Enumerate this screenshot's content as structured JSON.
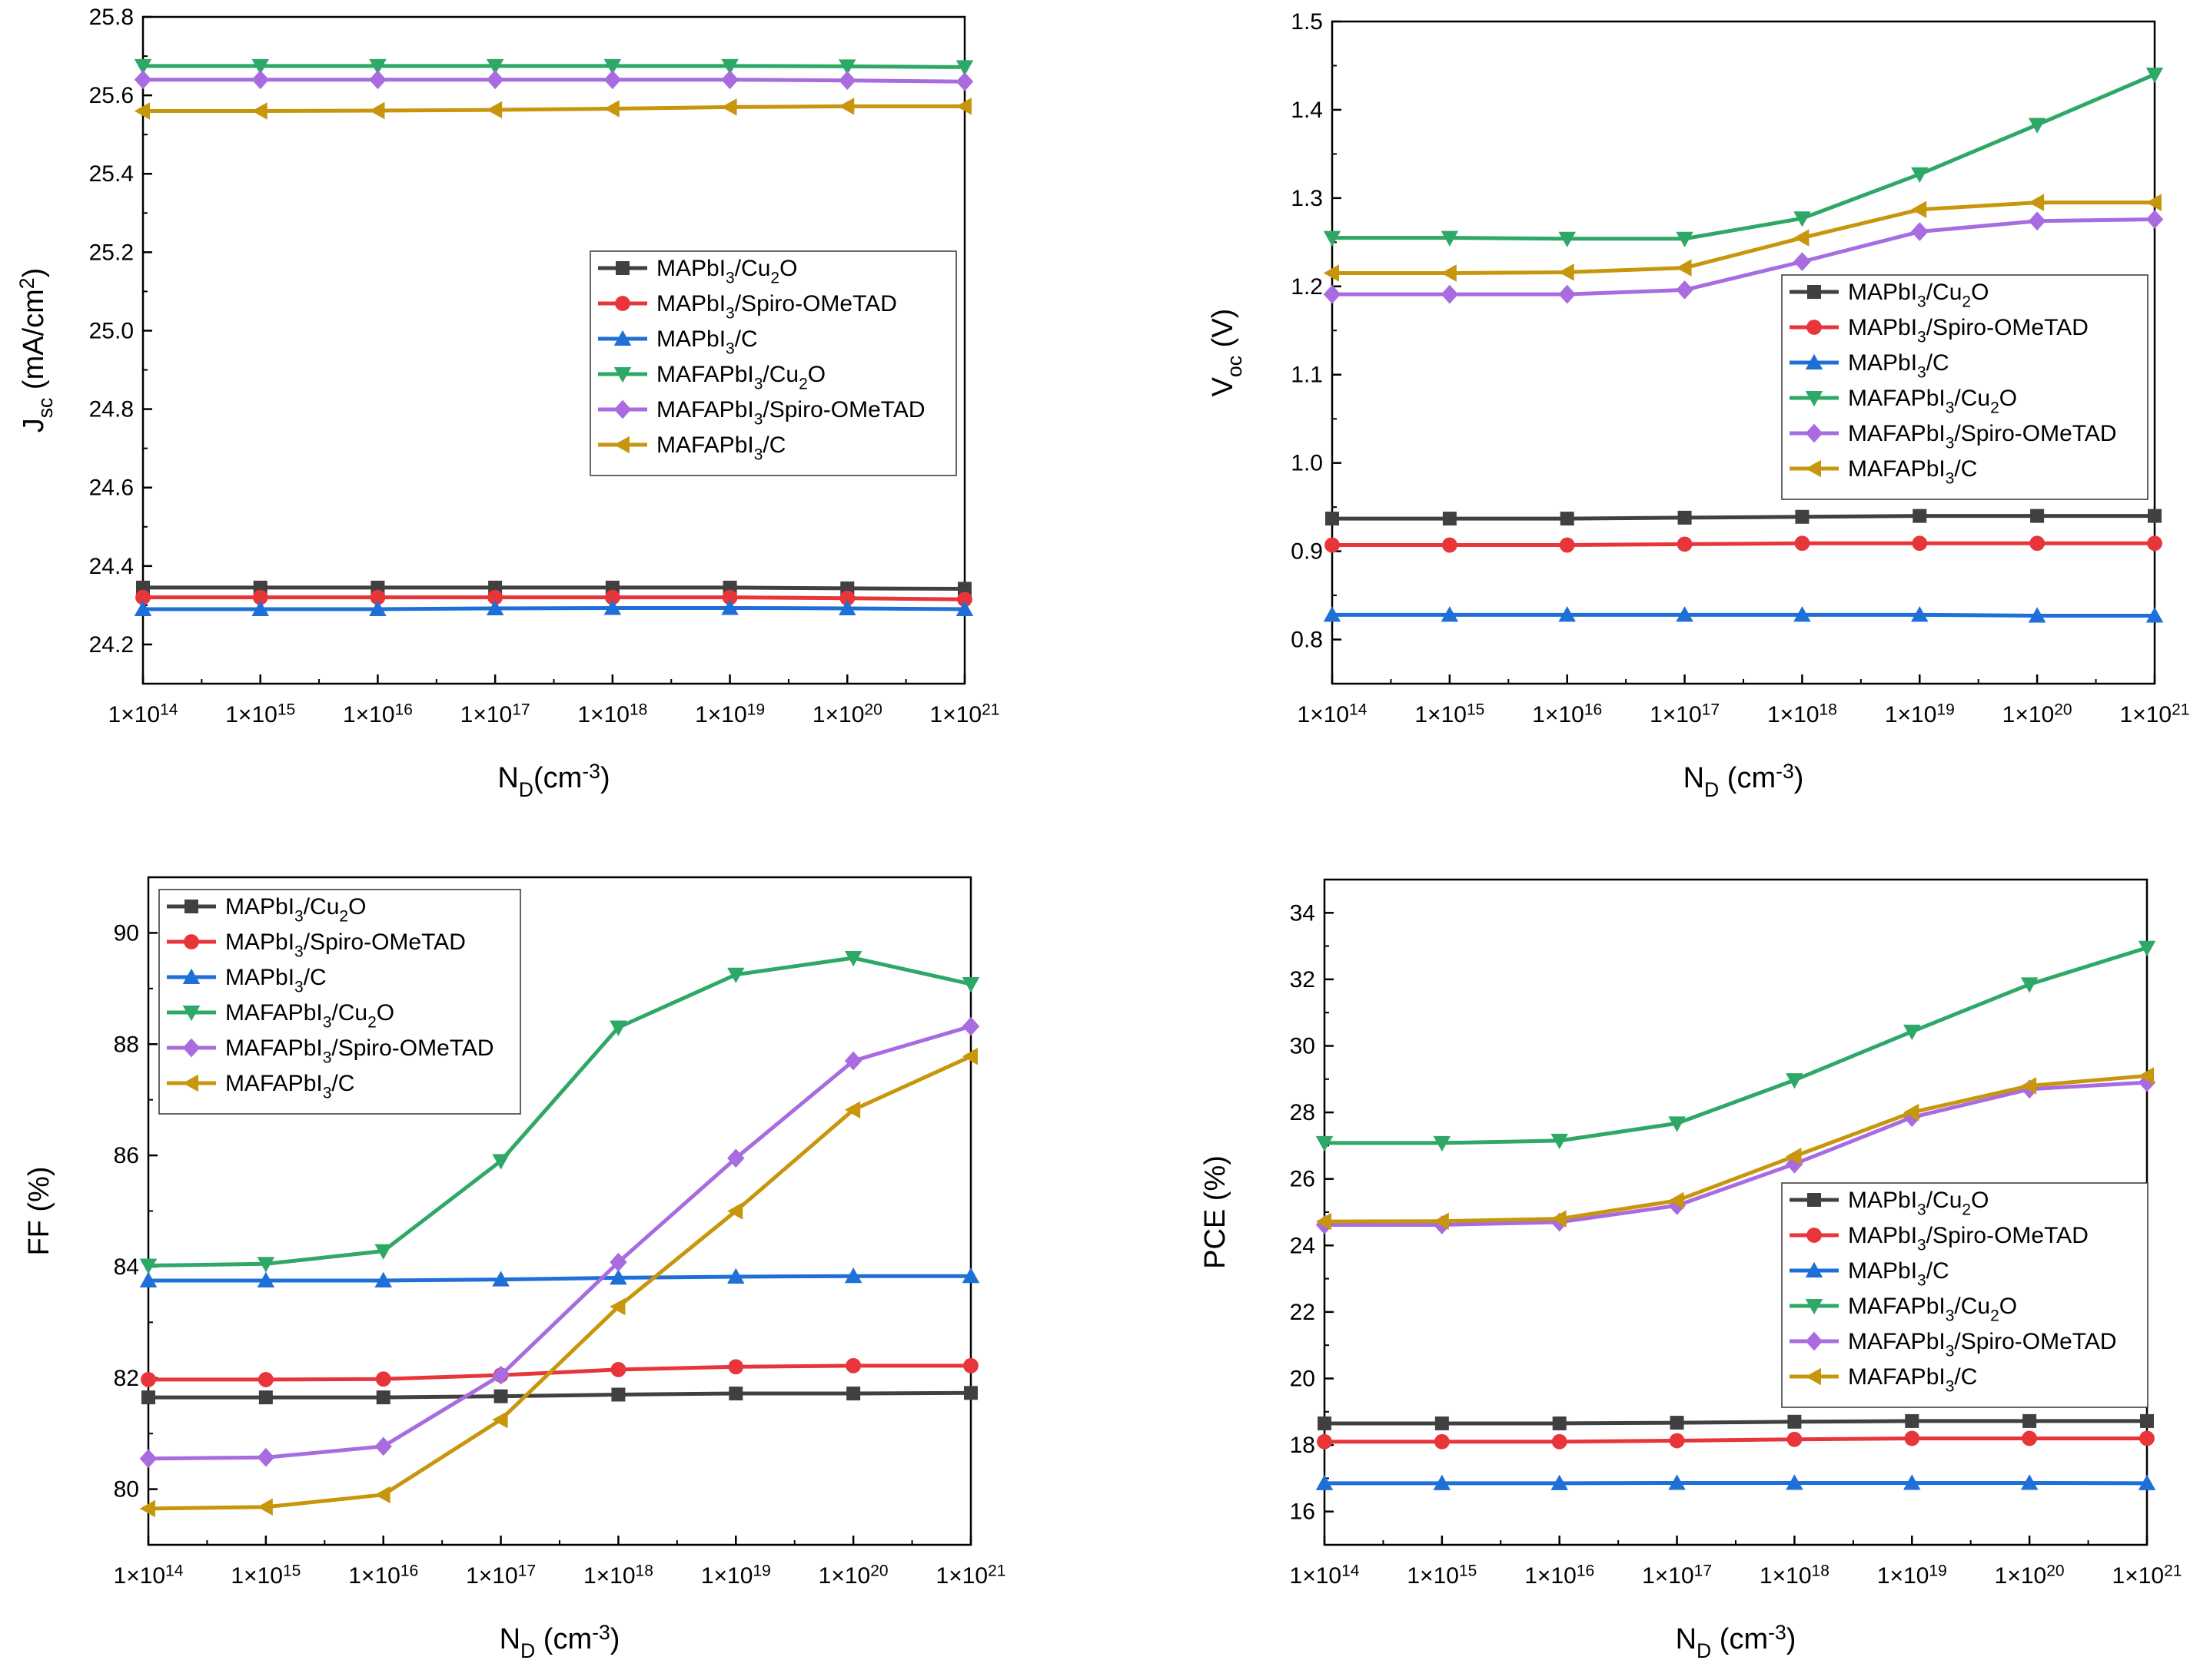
{
  "colors": {
    "MAPbI3/Cu2O": "#404040",
    "MAPbI3/Spiro-OMeTAD": "#e8353a",
    "MAPbI3/C": "#1f6fd8",
    "MAFAPbI3/Cu2O": "#2ea866",
    "MAFAPbI3/Spiro-OMeTAD": "#a86be0",
    "MAFAPbI3/C": "#c8960c"
  },
  "series_meta": [
    {
      "key": "MAPbI3/Cu2O",
      "marker": "square"
    },
    {
      "key": "MAPbI3/Spiro-OMeTAD",
      "marker": "circle"
    },
    {
      "key": "MAPbI3/C",
      "marker": "triangle-up"
    },
    {
      "key": "MAFAPbI3/Cu2O",
      "marker": "triangle-down"
    },
    {
      "key": "MAFAPbI3/Spiro-OMeTAD",
      "marker": "diamond"
    },
    {
      "key": "MAFAPbI3/C",
      "marker": "triangle-left"
    }
  ],
  "chart_data": [
    {
      "type": "line",
      "xlabel": "N_D(cm^-3)",
      "ylabel": "J_sc (mA/cm^2)",
      "x": [
        100000000000000.0,
        1000000000000000.0,
        1e+16,
        1e+17,
        1e+18,
        1e+19,
        1e+20,
        1e+21
      ],
      "x_tick_labels": [
        "1×10^14",
        "1×10^15",
        "1×10^16",
        "1×10^17",
        "1×10^18",
        "1×10^19",
        "1×10^20",
        "1×10^21"
      ],
      "xscale": "log",
      "ylim": [
        24.1,
        25.8
      ],
      "yticks": [
        "24.2",
        "24.4",
        "24.6",
        "24.8",
        "25.0",
        "25.2",
        "25.4",
        "25.6",
        "25.8"
      ],
      "legend_position": "center-right",
      "series": [
        {
          "name": "MAPbI3/Cu2O",
          "values": [
            24.345,
            24.345,
            24.345,
            24.345,
            24.345,
            24.345,
            24.343,
            24.342
          ]
        },
        {
          "name": "MAPbI3/Spiro-OMeTAD",
          "values": [
            24.32,
            24.32,
            24.32,
            24.32,
            24.32,
            24.32,
            24.318,
            24.315
          ]
        },
        {
          "name": "MAPbI3/C",
          "values": [
            24.29,
            24.29,
            24.29,
            24.292,
            24.293,
            24.293,
            24.292,
            24.29
          ]
        },
        {
          "name": "MAFAPbI3/Cu2O",
          "values": [
            25.675,
            25.675,
            25.675,
            25.675,
            25.675,
            25.675,
            25.674,
            25.672
          ]
        },
        {
          "name": "MAFAPbI3/Spiro-OMeTAD",
          "values": [
            25.64,
            25.64,
            25.64,
            25.64,
            25.64,
            25.64,
            25.638,
            25.635
          ]
        },
        {
          "name": "MAFAPbI3/C",
          "values": [
            25.56,
            25.56,
            25.561,
            25.563,
            25.566,
            25.57,
            25.572,
            25.572
          ]
        }
      ]
    },
    {
      "type": "line",
      "xlabel": "N_D (cm^-3)",
      "ylabel": "V_oc (V)",
      "x": [
        100000000000000.0,
        1000000000000000.0,
        1e+16,
        1e+17,
        1e+18,
        1e+19,
        1e+20,
        1e+21
      ],
      "x_tick_labels": [
        "1×10^14",
        "1×10^15",
        "1×10^16",
        "1×10^17",
        "1×10^18",
        "1×10^19",
        "1×10^20",
        "1×10^21"
      ],
      "xscale": "log",
      "ylim": [
        0.75,
        1.5
      ],
      "yticks": [
        "0.8",
        "0.9",
        "1.0",
        "1.1",
        "1.2",
        "1.3",
        "1.4",
        "1.5"
      ],
      "legend_position": "center-right",
      "series": [
        {
          "name": "MAPbI3/Cu2O",
          "values": [
            0.937,
            0.937,
            0.937,
            0.938,
            0.939,
            0.94,
            0.94,
            0.94
          ]
        },
        {
          "name": "MAPbI3/Spiro-OMeTAD",
          "values": [
            0.907,
            0.907,
            0.907,
            0.908,
            0.909,
            0.909,
            0.909,
            0.909
          ]
        },
        {
          "name": "MAPbI3/C",
          "values": [
            0.828,
            0.828,
            0.828,
            0.828,
            0.828,
            0.828,
            0.827,
            0.827
          ]
        },
        {
          "name": "MAFAPbI3/Cu2O",
          "values": [
            1.255,
            1.255,
            1.254,
            1.254,
            1.277,
            1.327,
            1.383,
            1.44
          ]
        },
        {
          "name": "MAFAPbI3/Spiro-OMeTAD",
          "values": [
            1.191,
            1.191,
            1.191,
            1.196,
            1.228,
            1.262,
            1.274,
            1.276
          ]
        },
        {
          "name": "MAFAPbI3/C",
          "values": [
            1.215,
            1.215,
            1.216,
            1.221,
            1.255,
            1.287,
            1.295,
            1.295
          ]
        }
      ]
    },
    {
      "type": "line",
      "xlabel": "N_D (cm^-3)",
      "ylabel": "FF (%)",
      "x": [
        100000000000000.0,
        1000000000000000.0,
        1e+16,
        1e+17,
        1e+18,
        1e+19,
        1e+20,
        1e+21
      ],
      "x_tick_labels": [
        "1×10^14",
        "1×10^15",
        "1×10^16",
        "1×10^17",
        "1×10^18",
        "1×10^19",
        "1×10^20",
        "1×10^21"
      ],
      "xscale": "log",
      "ylim": [
        79,
        91
      ],
      "yticks": [
        "80",
        "82",
        "84",
        "86",
        "88",
        "90"
      ],
      "legend_position": "top-left",
      "series": [
        {
          "name": "MAPbI3/Cu2O",
          "values": [
            81.65,
            81.65,
            81.65,
            81.67,
            81.7,
            81.72,
            81.72,
            81.73
          ]
        },
        {
          "name": "MAPbI3/Spiro-OMeTAD",
          "values": [
            81.97,
            81.97,
            81.98,
            82.05,
            82.15,
            82.2,
            82.22,
            82.22
          ]
        },
        {
          "name": "MAPbI3/C",
          "values": [
            83.75,
            83.75,
            83.75,
            83.77,
            83.8,
            83.82,
            83.83,
            83.83
          ]
        },
        {
          "name": "MAFAPbI3/Cu2O",
          "values": [
            84.02,
            84.05,
            84.28,
            85.9,
            88.3,
            89.25,
            89.55,
            89.08
          ]
        },
        {
          "name": "MAFAPbI3/Spiro-OMeTAD",
          "values": [
            80.55,
            80.57,
            80.77,
            82.05,
            84.08,
            85.95,
            87.7,
            88.32
          ]
        },
        {
          "name": "MAFAPbI3/C",
          "values": [
            79.65,
            79.68,
            79.9,
            81.25,
            83.28,
            85.0,
            86.82,
            87.78
          ]
        }
      ]
    },
    {
      "type": "line",
      "xlabel": "N_D (cm^-3)",
      "ylabel": "PCE (%)",
      "x": [
        100000000000000.0,
        1000000000000000.0,
        1e+16,
        1e+17,
        1e+18,
        1e+19,
        1e+20,
        1e+21
      ],
      "x_tick_labels": [
        "1×10^14",
        "1×10^15",
        "1×10^16",
        "1×10^17",
        "1×10^18",
        "1×10^19",
        "1×10^20",
        "1×10^21"
      ],
      "xscale": "log",
      "ylim": [
        15,
        35
      ],
      "yticks": [
        "16",
        "18",
        "20",
        "22",
        "24",
        "26",
        "28",
        "30",
        "32",
        "34"
      ],
      "legend_position": "center-right",
      "series": [
        {
          "name": "MAPbI3/Cu2O",
          "values": [
            18.65,
            18.65,
            18.65,
            18.67,
            18.7,
            18.72,
            18.72,
            18.72
          ]
        },
        {
          "name": "MAPbI3/Spiro-OMeTAD",
          "values": [
            18.1,
            18.1,
            18.1,
            18.13,
            18.17,
            18.2,
            18.2,
            18.2
          ]
        },
        {
          "name": "MAPbI3/C",
          "values": [
            16.85,
            16.85,
            16.85,
            16.86,
            16.86,
            16.86,
            16.86,
            16.85
          ]
        },
        {
          "name": "MAFAPbI3/Cu2O",
          "values": [
            27.08,
            27.08,
            27.15,
            27.67,
            28.97,
            30.43,
            31.85,
            32.95
          ]
        },
        {
          "name": "MAFAPbI3/Spiro-OMeTAD",
          "values": [
            24.62,
            24.62,
            24.7,
            25.2,
            26.45,
            27.85,
            28.7,
            28.9
          ]
        },
        {
          "name": "MAFAPbI3/C",
          "values": [
            24.72,
            24.73,
            24.8,
            25.35,
            26.68,
            28.0,
            28.8,
            29.1
          ]
        }
      ]
    }
  ]
}
